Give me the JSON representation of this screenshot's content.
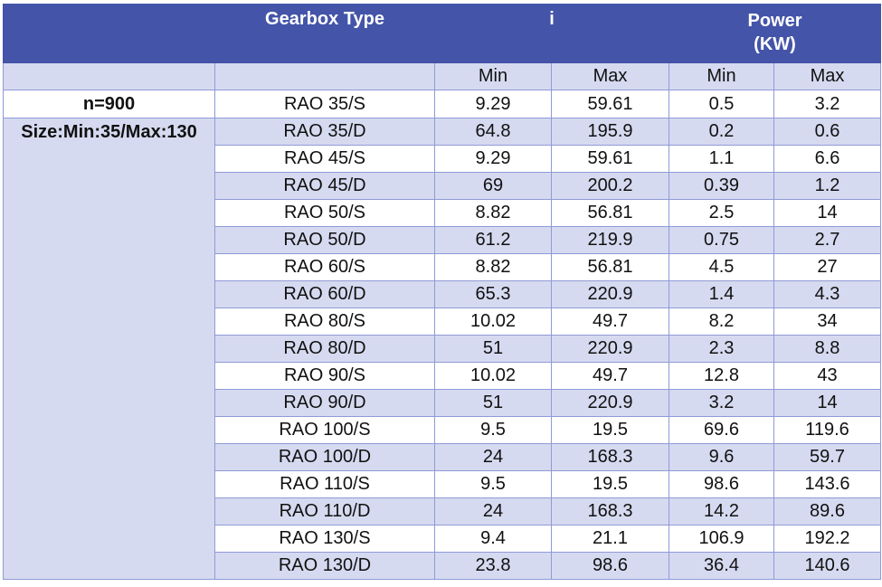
{
  "header": {
    "gearbox_type": "Gearbox Type",
    "ratio": "i",
    "power_line1": "Power",
    "power_line2": "(KW)"
  },
  "subheader": {
    "min": "Min",
    "max": "Max"
  },
  "side": {
    "speed": "n=900",
    "size": "Size:Min:35/Max:130"
  },
  "rows": [
    {
      "type": "RAO 35/S",
      "i_min": "9.29",
      "i_max": "59.61",
      "p_min": "0.5",
      "p_max": "3.2"
    },
    {
      "type": "RAO 35/D",
      "i_min": "64.8",
      "i_max": "195.9",
      "p_min": "0.2",
      "p_max": "0.6"
    },
    {
      "type": "RAO 45/S",
      "i_min": "9.29",
      "i_max": "59.61",
      "p_min": "1.1",
      "p_max": "6.6"
    },
    {
      "type": "RAO 45/D",
      "i_min": "69",
      "i_max": "200.2",
      "p_min": "0.39",
      "p_max": "1.2"
    },
    {
      "type": "RAO 50/S",
      "i_min": "8.82",
      "i_max": "56.81",
      "p_min": "2.5",
      "p_max": "14"
    },
    {
      "type": "RAO 50/D",
      "i_min": "61.2",
      "i_max": "219.9",
      "p_min": "0.75",
      "p_max": "2.7"
    },
    {
      "type": "RAO 60/S",
      "i_min": "8.82",
      "i_max": "56.81",
      "p_min": "4.5",
      "p_max": "27"
    },
    {
      "type": "RAO 60/D",
      "i_min": "65.3",
      "i_max": "220.9",
      "p_min": "1.4",
      "p_max": "4.3"
    },
    {
      "type": "RAO 80/S",
      "i_min": "10.02",
      "i_max": "49.7",
      "p_min": "8.2",
      "p_max": "34"
    },
    {
      "type": "RAO 80/D",
      "i_min": "51",
      "i_max": "220.9",
      "p_min": "2.3",
      "p_max": "8.8"
    },
    {
      "type": "RAO 90/S",
      "i_min": "10.02",
      "i_max": "49.7",
      "p_min": "12.8",
      "p_max": "43"
    },
    {
      "type": "RAO 90/D",
      "i_min": "51",
      "i_max": "220.9",
      "p_min": "3.2",
      "p_max": "14"
    },
    {
      "type": "RAO 100/S",
      "i_min": "9.5",
      "i_max": "19.5",
      "p_min": "69.6",
      "p_max": "119.6"
    },
    {
      "type": "RAO 100/D",
      "i_min": "24",
      "i_max": "168.3",
      "p_min": "9.6",
      "p_max": "59.7"
    },
    {
      "type": "RAO 110/S",
      "i_min": "9.5",
      "i_max": "19.5",
      "p_min": "98.6",
      "p_max": "143.6"
    },
    {
      "type": "RAO 110/D",
      "i_min": "24",
      "i_max": "168.3",
      "p_min": "14.2",
      "p_max": "89.6"
    },
    {
      "type": "RAO 130/S",
      "i_min": "9.4",
      "i_max": "21.1",
      "p_min": "106.9",
      "p_max": "192.2"
    },
    {
      "type": "RAO 130/D",
      "i_min": "23.8",
      "i_max": "98.6",
      "p_min": "36.4",
      "p_max": "140.6"
    }
  ]
}
